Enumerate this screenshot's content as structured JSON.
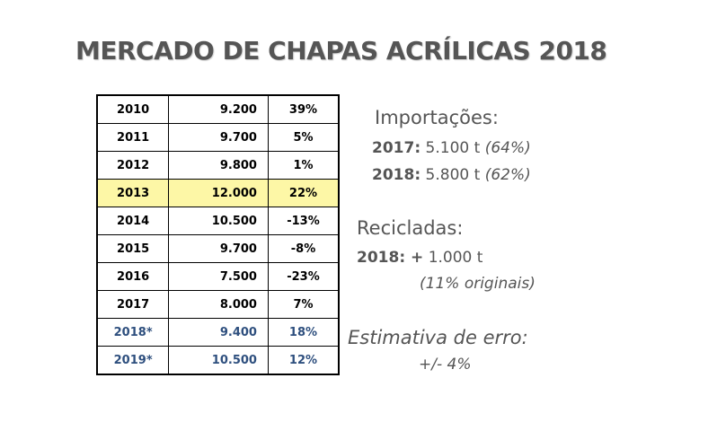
{
  "title": "MERCADO DE CHAPAS ACRÍLICAS 2018",
  "table": {
    "rows": [
      {
        "year": "2010",
        "value": "9.200",
        "pct": "39%"
      },
      {
        "year": "2011",
        "value": "9.700",
        "pct": "5%"
      },
      {
        "year": "2012",
        "value": "9.800",
        "pct": "1%"
      },
      {
        "year": "2013",
        "value": "12.000",
        "pct": "22%"
      },
      {
        "year": "2014",
        "value": "10.500",
        "pct": "-13%"
      },
      {
        "year": "2015",
        "value": "9.700",
        "pct": "-8%"
      },
      {
        "year": "2016",
        "value": "7.500",
        "pct": "-23%"
      },
      {
        "year": "2017",
        "value": "8.000",
        "pct": "7%"
      },
      {
        "year": "2018*",
        "value": "9.400",
        "pct": "18%"
      },
      {
        "year": "2019*",
        "value": "10.500",
        "pct": "12%"
      }
    ],
    "highlight_row_year": "2013",
    "highlight_color": "#fdf7a6",
    "projection_color": "#2e4f7e"
  },
  "importacoes": {
    "heading": "Importações:",
    "y2017_label": "2017:",
    "y2017_value": "5.100 t",
    "y2017_share": "(64%)",
    "y2018_label": "2018:",
    "y2018_value": "5.800 t",
    "y2018_share": "(62%)"
  },
  "recicladas": {
    "heading": "Recicladas:",
    "label": "2018: +",
    "value": "1.000 t",
    "note": "(11% originais)"
  },
  "erro": {
    "heading": "Estimativa de erro:",
    "value": "+/- 4%"
  }
}
